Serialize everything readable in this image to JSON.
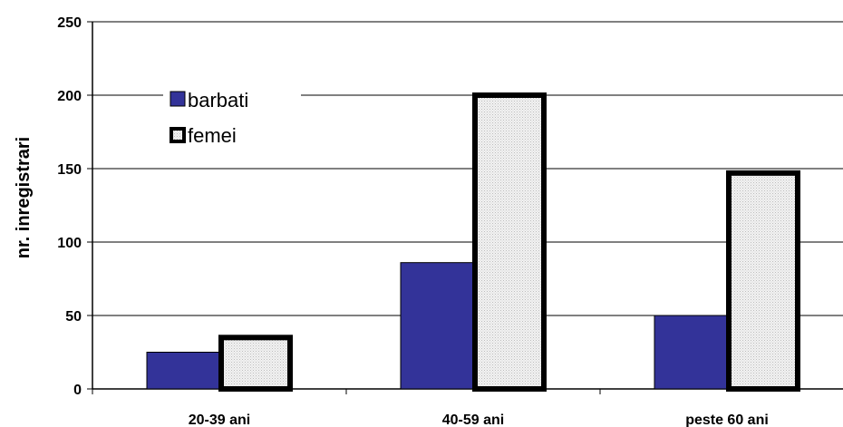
{
  "chart_data": {
    "type": "bar",
    "categories": [
      "20-39 ani",
      "40-59 ani",
      "peste 60 ani"
    ],
    "series": [
      {
        "name": "barbati",
        "values": [
          25,
          86,
          50
        ],
        "color": "#333399"
      },
      {
        "name": "femei",
        "values": [
          35,
          200,
          147
        ],
        "color": "#e8e8e8",
        "outline": "#000000"
      }
    ],
    "ylabel": "nr. inregistrari",
    "xlabel": "",
    "ylim": [
      0,
      250
    ],
    "yticks": [
      0,
      50,
      100,
      150,
      200,
      250
    ],
    "grid": true,
    "legend_position": "top-left"
  }
}
